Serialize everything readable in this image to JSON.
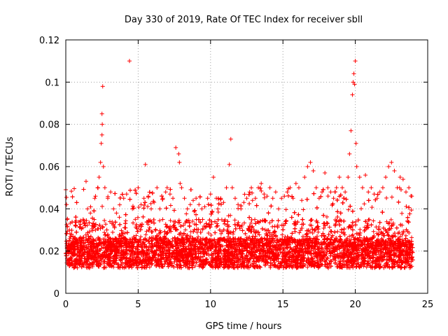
{
  "chart_data": {
    "type": "scatter",
    "title": "Day 330 of 2019, Rate Of TEC Index for receiver sbll",
    "xlabel": "GPS time / hours",
    "ylabel": "ROTI / TECUs",
    "xlim": [
      0,
      25
    ],
    "ylim": [
      0,
      0.12
    ],
    "xticks": [
      0,
      5,
      10,
      15,
      20,
      25
    ],
    "yticks": [
      0,
      0.02,
      0.04,
      0.06,
      0.08,
      0.1,
      0.12
    ],
    "xtick_labels": [
      "0",
      "5",
      "10",
      "15",
      "20",
      "25"
    ],
    "ytick_labels": [
      "0",
      "0.02",
      "0.04",
      "0.06",
      "0.08",
      "0.1",
      "0.12"
    ],
    "grid": true,
    "marker": "+",
    "color": "#ff0000",
    "series": [
      {
        "name": "ROTI",
        "x": [
          0.05,
          0.1,
          0.15,
          0.25,
          0.4,
          0.6,
          0.8,
          1.0,
          1.2,
          1.4,
          1.5,
          1.7,
          1.9,
          2.0,
          2.2,
          2.3,
          2.4,
          2.45,
          2.5,
          2.5,
          2.52,
          2.55,
          2.6,
          2.7,
          2.9,
          3.1,
          3.3,
          3.5,
          3.7,
          4.0,
          4.2,
          4.4,
          4.6,
          4.8,
          5.0,
          5.2,
          5.4,
          5.5,
          5.7,
          5.9,
          6.1,
          6.3,
          6.5,
          6.7,
          6.9,
          7.0,
          7.2,
          7.4,
          7.6,
          7.8,
          7.85,
          7.9,
          8.0,
          8.2,
          8.4,
          8.6,
          8.8,
          9.0,
          9.2,
          9.4,
          9.6,
          9.8,
          10.0,
          10.2,
          10.4,
          10.5,
          10.7,
          10.9,
          11.1,
          11.3,
          11.4,
          11.5,
          11.7,
          11.9,
          12.1,
          12.3,
          12.5,
          12.7,
          12.9,
          13.1,
          13.3,
          13.5,
          13.7,
          13.9,
          14.1,
          14.3,
          14.5,
          14.7,
          14.9,
          15.1,
          15.3,
          15.5,
          15.7,
          15.9,
          16.1,
          16.3,
          16.5,
          16.7,
          16.9,
          17.1,
          17.3,
          17.5,
          17.7,
          17.9,
          18.1,
          18.3,
          18.5,
          18.7,
          18.9,
          19.1,
          19.3,
          19.5,
          19.6,
          19.7,
          19.8,
          19.85,
          19.9,
          19.95,
          20.0,
          20.05,
          20.1,
          20.3,
          20.5,
          20.7,
          20.9,
          21.1,
          21.3,
          21.5,
          21.7,
          21.9,
          22.1,
          22.3,
          22.5,
          22.7,
          22.9,
          23.1,
          23.3,
          23.5,
          23.7,
          23.9
        ],
        "y": [
          0.042,
          0.035,
          0.02,
          0.03,
          0.028,
          0.015,
          0.022,
          0.026,
          0.035,
          0.053,
          0.04,
          0.038,
          0.033,
          0.045,
          0.05,
          0.055,
          0.062,
          0.071,
          0.075,
          0.085,
          0.08,
          0.098,
          0.06,
          0.05,
          0.045,
          0.048,
          0.04,
          0.038,
          0.036,
          0.045,
          0.047,
          0.11,
          0.04,
          0.035,
          0.05,
          0.042,
          0.045,
          0.061,
          0.046,
          0.04,
          0.043,
          0.05,
          0.04,
          0.045,
          0.048,
          0.05,
          0.047,
          0.045,
          0.069,
          0.066,
          0.062,
          0.052,
          0.05,
          0.045,
          0.04,
          0.042,
          0.044,
          0.045,
          0.042,
          0.04,
          0.041,
          0.045,
          0.047,
          0.055,
          0.045,
          0.04,
          0.045,
          0.043,
          0.05,
          0.061,
          0.073,
          0.05,
          0.045,
          0.042,
          0.04,
          0.043,
          0.045,
          0.048,
          0.044,
          0.045,
          0.05,
          0.052,
          0.047,
          0.046,
          0.05,
          0.045,
          0.048,
          0.04,
          0.045,
          0.046,
          0.048,
          0.05,
          0.045,
          0.052,
          0.05,
          0.044,
          0.055,
          0.06,
          0.062,
          0.058,
          0.05,
          0.045,
          0.048,
          0.057,
          0.05,
          0.048,
          0.045,
          0.05,
          0.055,
          0.05,
          0.048,
          0.055,
          0.066,
          0.077,
          0.094,
          0.1,
          0.104,
          0.099,
          0.11,
          0.071,
          0.06,
          0.055,
          0.05,
          0.056,
          0.048,
          0.05,
          0.047,
          0.045,
          0.048,
          0.05,
          0.055,
          0.06,
          0.062,
          0.058,
          0.05,
          0.055,
          0.054,
          0.048,
          0.05,
          0.046
        ]
      }
    ]
  }
}
